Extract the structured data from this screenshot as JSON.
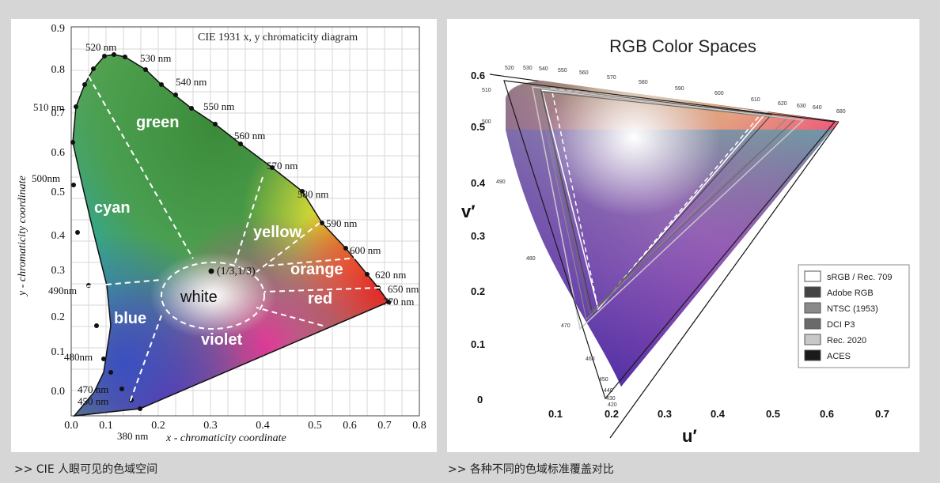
{
  "left_panel": {
    "title": "CIE 1931 x, y chromaticity diagram",
    "x_axis_label": "x - chromaticity coordinate",
    "y_axis_label": "y - chromaticity coordinate",
    "x_ticks": [
      "0.0",
      "0.1",
      "0.2",
      "0.3",
      "0.4",
      "0.5",
      "0.6",
      "0.7",
      "0.8"
    ],
    "y_ticks": [
      "0.0",
      "0.1",
      "0.2",
      "0.3",
      "0.4",
      "0.5",
      "0.6",
      "0.7",
      "0.8",
      "0.9"
    ],
    "wavelengths": [
      "520 nm",
      "530 nm",
      "540 nm",
      "550 nm",
      "560 nm",
      "570 nm",
      "580 nm",
      "590 nm",
      "600 nm",
      "620 nm",
      "650 nm",
      "770 nm",
      "510 nm",
      "500nm",
      "490nm",
      "480nm",
      "470 nm",
      "450 nm",
      "380 nm"
    ],
    "regions": [
      "green",
      "cyan",
      "yellow",
      "orange",
      "white",
      "red",
      "blue",
      "violet"
    ],
    "white_point_label": "(1/3,1/3)",
    "caption": ">> CIE 人眼可见的色域空间"
  },
  "right_panel": {
    "title": "RGB Color Spaces",
    "u_axis_label": "u′",
    "v_axis_label": "v′",
    "u_ticks": [
      "0.1",
      "0.2",
      "0.3",
      "0.4",
      "0.5",
      "0.6",
      "0.7"
    ],
    "v_ticks": [
      "0.6",
      "0.5",
      "0.4",
      "0.3",
      "0.2",
      "0.1",
      "0"
    ],
    "wavelengths_top": [
      "520",
      "530",
      "540",
      "550",
      "560",
      "570",
      "580",
      "590",
      "600",
      "610",
      "620",
      "630",
      "640",
      "680"
    ],
    "wavelengths_left": [
      "510",
      "500",
      "490",
      "480",
      "470",
      "460",
      "450",
      "440",
      "430",
      "420"
    ],
    "legend": [
      {
        "label": "sRGB / Rec. 709",
        "color": "#ffffff"
      },
      {
        "label": "Adobe RGB",
        "color": "#444444"
      },
      {
        "label": "NTSC (1953)",
        "color": "#8a8a8a"
      },
      {
        "label": "DCI P3",
        "color": "#6a6a6a"
      },
      {
        "label": "Rec. 2020",
        "color": "#c8c8c8"
      },
      {
        "label": "ACES",
        "color": "#1a1a1a"
      }
    ],
    "caption": ">> 各种不同的色域标准覆盖对比"
  }
}
